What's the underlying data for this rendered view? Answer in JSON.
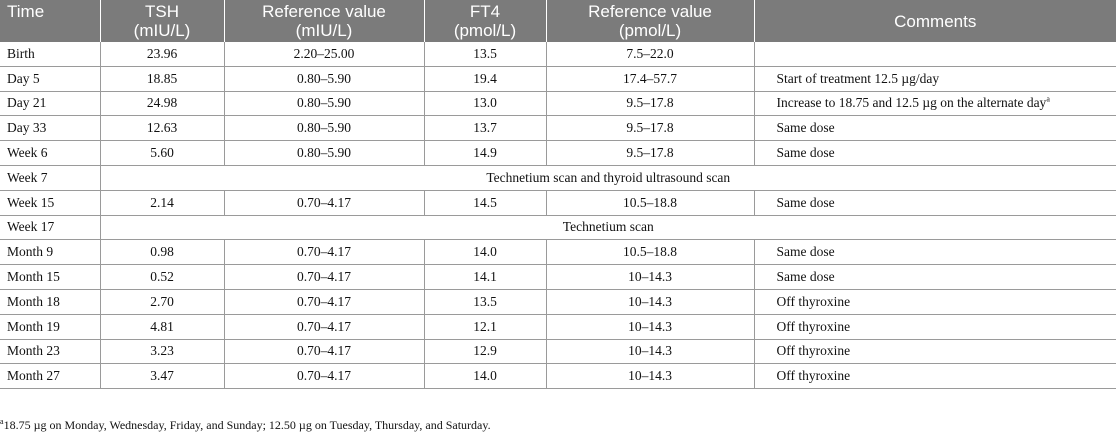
{
  "headers": [
    {
      "line1": "Time",
      "line2": ""
    },
    {
      "line1": "TSH",
      "line2": "(mIU/L)"
    },
    {
      "line1": "Reference value",
      "line2": "(mIU/L)"
    },
    {
      "line1": "FT4",
      "line2": "(pmol/L)"
    },
    {
      "line1": "Reference value",
      "line2": "(pmol/L)"
    },
    {
      "line1": "Comments",
      "line2": ""
    }
  ],
  "rows": [
    {
      "time": "Birth",
      "tsh": "23.96",
      "tsh_ref": "2.20–25.00",
      "ft4": "13.5",
      "ft4_ref": "7.5–22.0",
      "comment": ""
    },
    {
      "time": "Day 5",
      "tsh": "18.85",
      "tsh_ref": "0.80–5.90",
      "ft4": "19.4",
      "ft4_ref": "17.4–57.7",
      "comment": "Start of treatment 12.5 µg/day"
    },
    {
      "time": "Day 21",
      "tsh": "24.98",
      "tsh_ref": "0.80–5.90",
      "ft4": "13.0",
      "ft4_ref": "9.5–17.8",
      "comment": "Increase to 18.75 and 12.5 µg on the alternate day",
      "comment_sup": "a"
    },
    {
      "time": "Day 33",
      "tsh": "12.63",
      "tsh_ref": "0.80–5.90",
      "ft4": "13.7",
      "ft4_ref": "9.5–17.8",
      "comment": "Same dose"
    },
    {
      "time": "Week 6",
      "tsh": "5.60",
      "tsh_ref": "0.80–5.90",
      "ft4": "14.9",
      "ft4_ref": "9.5–17.8",
      "comment": "Same dose"
    },
    {
      "time": "Week 7",
      "note": "Technetium scan and thyroid ultrasound scan"
    },
    {
      "time": "Week 15",
      "tsh": "2.14",
      "tsh_ref": "0.70–4.17",
      "ft4": "14.5",
      "ft4_ref": "10.5–18.8",
      "comment": "Same dose"
    },
    {
      "time": "Week 17",
      "note": "Technetium scan"
    },
    {
      "time": "Month 9",
      "tsh": "0.98",
      "tsh_ref": "0.70–4.17",
      "ft4": "14.0",
      "ft4_ref": "10.5–18.8",
      "comment": "Same dose"
    },
    {
      "time": "Month 15",
      "tsh": "0.52",
      "tsh_ref": "0.70–4.17",
      "ft4": "14.1",
      "ft4_ref": "10–14.3",
      "comment": "Same dose"
    },
    {
      "time": "Month 18",
      "tsh": "2.70",
      "tsh_ref": "0.70–4.17",
      "ft4": "13.5",
      "ft4_ref": "10–14.3",
      "comment": "Off thyroxine"
    },
    {
      "time": "Month 19",
      "tsh": "4.81",
      "tsh_ref": "0.70–4.17",
      "ft4": "12.1",
      "ft4_ref": "10–14.3",
      "comment": "Off thyroxine"
    },
    {
      "time": "Month 23",
      "tsh": "3.23",
      "tsh_ref": "0.70–4.17",
      "ft4": "12.9",
      "ft4_ref": "10–14.3",
      "comment": "Off thyroxine"
    },
    {
      "time": "Month 27",
      "tsh": "3.47",
      "tsh_ref": "0.70–4.17",
      "ft4": "14.0",
      "ft4_ref": "10–14.3",
      "comment": "Off thyroxine"
    }
  ],
  "footnote": {
    "marker": "a",
    "text": "18.75 µg on Monday, Wednesday, Friday, and Sunday; 12.50 µg on Tuesday, Thursday, and Saturday."
  }
}
